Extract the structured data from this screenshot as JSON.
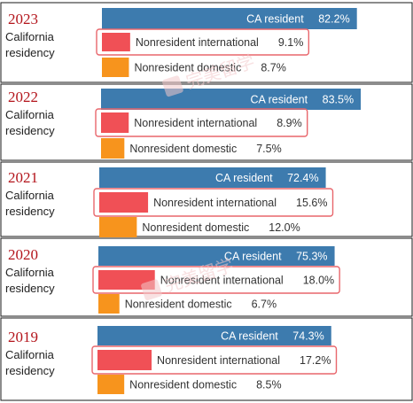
{
  "dimension_label": "California residency",
  "category_labels": [
    "CA resident",
    "Nonresident international",
    "Nonresident domestic"
  ],
  "colors": {
    "CA resident": "#3d7bae",
    "Nonresident international": "#f05056",
    "Nonresident domestic": "#f7941d",
    "year": "#b3141b",
    "highlight_box": "#e8666c"
  },
  "watermark": "完美留学",
  "chart_data": [
    {
      "type": "bar",
      "title": "2023",
      "categories": [
        "CA resident",
        "Nonresident international",
        "Nonresident domestic"
      ],
      "values": [
        82.2,
        9.1,
        8.7
      ],
      "labels": [
        "82.2%",
        "9.1%",
        "8.7%"
      ]
    },
    {
      "type": "bar",
      "title": "2022",
      "categories": [
        "CA resident",
        "Nonresident international",
        "Nonresident domestic"
      ],
      "values": [
        83.5,
        8.9,
        7.5
      ],
      "labels": [
        "83.5%",
        "8.9%",
        "7.5%"
      ]
    },
    {
      "type": "bar",
      "title": "2021",
      "categories": [
        "CA resident",
        "Nonresident international",
        "Nonresident domestic"
      ],
      "values": [
        72.4,
        15.6,
        12.0
      ],
      "labels": [
        "72.4%",
        "15.6%",
        "12.0%"
      ]
    },
    {
      "type": "bar",
      "title": "2020",
      "categories": [
        "CA resident",
        "Nonresident international",
        "Nonresident domestic"
      ],
      "values": [
        75.3,
        18.0,
        6.7
      ],
      "labels": [
        "75.3%",
        "18.0%",
        "6.7%"
      ]
    },
    {
      "type": "bar",
      "title": "2019",
      "categories": [
        "CA resident",
        "Nonresident international",
        "Nonresident domestic"
      ],
      "values": [
        74.3,
        17.2,
        8.5
      ],
      "labels": [
        "74.3%",
        "17.2%",
        "8.5%"
      ]
    }
  ]
}
